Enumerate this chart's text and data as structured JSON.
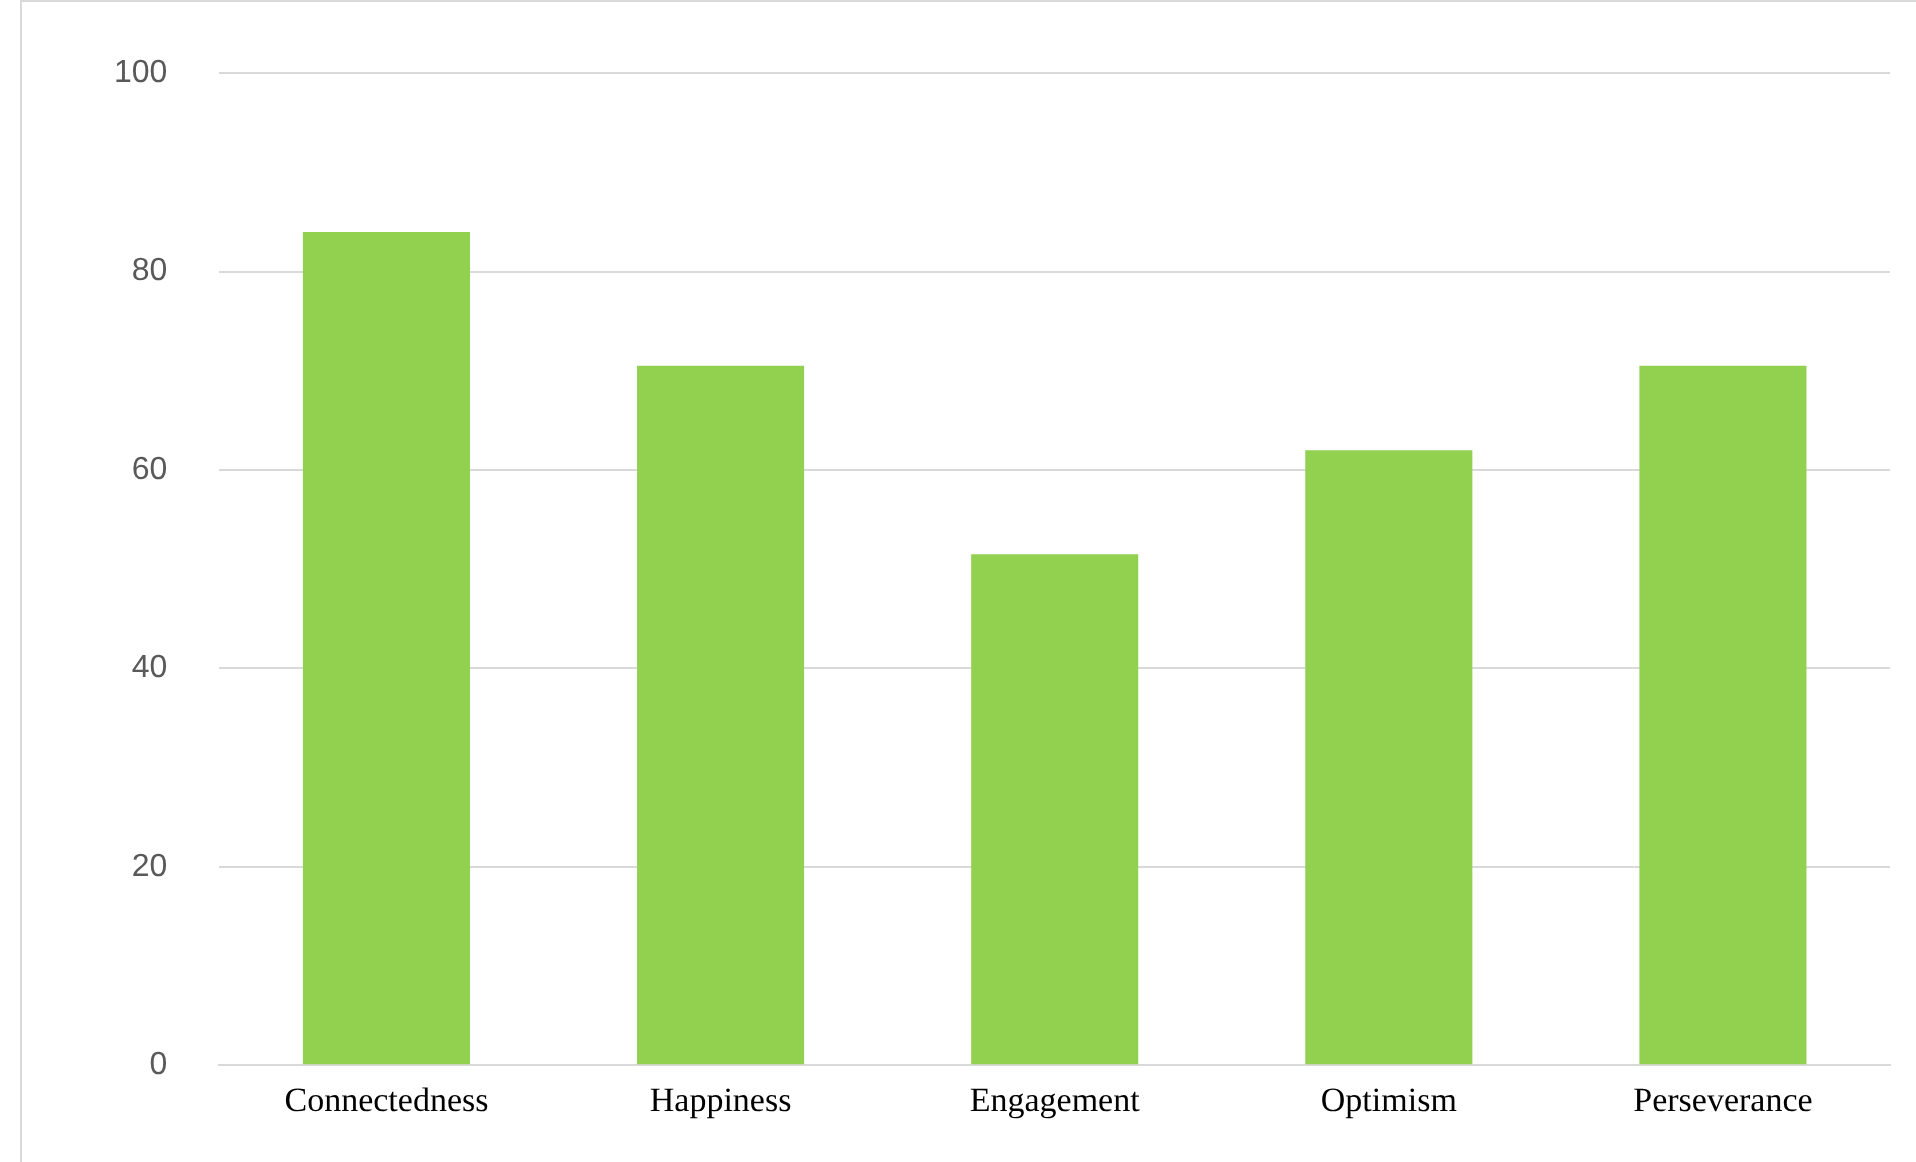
{
  "chart_data": {
    "type": "bar",
    "categories": [
      "Connectedness",
      "Happiness",
      "Engagement",
      "Optimism",
      "Perseverance"
    ],
    "series": [
      {
        "color": "#92d050",
        "values": [
          84,
          70.5,
          51.5,
          62,
          70.5
        ]
      }
    ],
    "ylim": [
      0,
      100
    ],
    "yticks": [
      0,
      20,
      40,
      60,
      80,
      100
    ],
    "grid": "y",
    "legend": false
  }
}
